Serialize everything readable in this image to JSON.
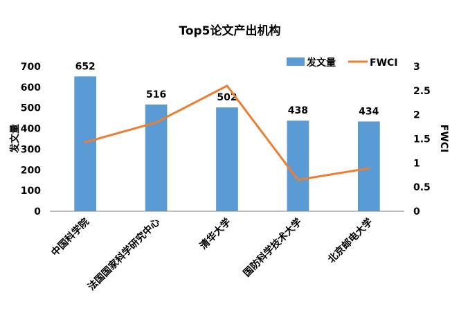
{
  "chart_data": {
    "type": "bar",
    "title": "Top5论文产出机构",
    "categories": [
      "中国科学院",
      "法国国家科学研究中心",
      "清华大学",
      "国防科学技术大学",
      "北京邮电大学"
    ],
    "series": [
      {
        "name": "发文量",
        "kind": "bar",
        "axis": "left",
        "color": "#5B9BD5",
        "values": [
          652,
          516,
          502,
          438,
          434
        ],
        "labels": [
          "652",
          "516",
          "502",
          "438",
          "434"
        ]
      },
      {
        "name": "FWCI",
        "kind": "line",
        "axis": "right",
        "color": "#ED7D31",
        "values": [
          1.43,
          1.84,
          2.6,
          0.65,
          0.89
        ]
      }
    ],
    "ylabel": "发文量",
    "y2label": "FWCI",
    "ylim": [
      0,
      700
    ],
    "y2lim": [
      0,
      3
    ],
    "yticks": [
      "0",
      "100",
      "200",
      "300",
      "400",
      "500",
      "600",
      "700"
    ],
    "y2ticks": [
      "0",
      "0.5",
      "1",
      "1.5",
      "2",
      "2.5",
      "3"
    ],
    "legend": "top-right",
    "grid": false
  }
}
